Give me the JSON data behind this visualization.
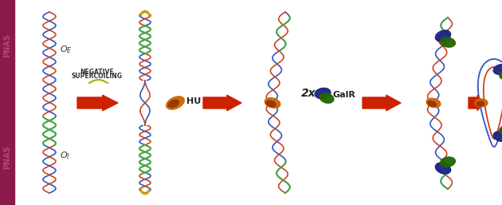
{
  "background_color": "#ffffff",
  "sidebar_color": "#8B1A4A",
  "sidebar_text_color": "#c0607a",
  "arrow_color": "#CC2200",
  "dna_color1": "#3355BB",
  "dna_color2": "#CC4422",
  "dna_color3": "#44AA44",
  "dna_connector_color": "#AABBCC",
  "hu_color1": "#CC6600",
  "hu_color2": "#8B3000",
  "galr_color1": "#1A2288",
  "galr_color2": "#226600",
  "label_OE": "O$_E$",
  "label_OI": "O$_I$",
  "label_neg_sc1": "NEGATIVE",
  "label_neg_sc2": "SUPERCOILING",
  "label_HU": "HU",
  "label_2x": "2x",
  "label_GalR": "GalR",
  "figure_width": 6.3,
  "figure_height": 2.57,
  "dpi": 100
}
